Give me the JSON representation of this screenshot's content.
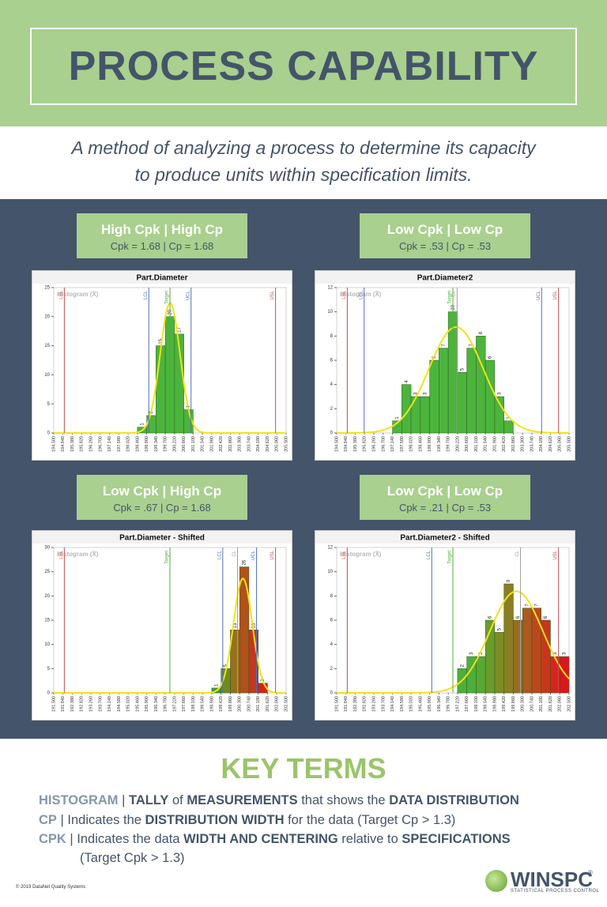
{
  "header": {
    "title": "PROCESS CAPABILITY",
    "subtitle": [
      "A method of analyzing a process to determine its capacity",
      "to produce units within specification limits."
    ]
  },
  "panels": [
    {
      "heading": "High Cpk | High Cp",
      "stats": "Cpk = 1.68  |  Cp = 1.68"
    },
    {
      "heading": "Low Cpk | Low Cp",
      "stats": "Cpk = .53  |  Cp = .53"
    },
    {
      "heading": "Low Cpk | High Cp",
      "stats": "Cpk = .67  |  Cp = 1.68"
    },
    {
      "heading": "Low Cpk | Low Cp",
      "stats": "Cpk = .21  |  Cp = .53"
    }
  ],
  "chart_data": [
    {
      "type": "histogram",
      "title": "Part.Diameter",
      "watermark": "Histogram (X̄)",
      "bins": [
        198.46,
        198.9,
        199.34,
        199.78,
        200.22,
        200.66,
        201.1
      ],
      "values": [
        1,
        3,
        15,
        20,
        17,
        4
      ],
      "color": "#4cb43c",
      "xlim": [
        194.5,
        205.5
      ],
      "ylim": [
        0,
        25
      ],
      "yticks": [
        0,
        5,
        10,
        15,
        20,
        25
      ],
      "xticks": [
        {
          "value": 194.5,
          "label": "194.500"
        },
        {
          "value": 194.94,
          "label": "194.940"
        },
        {
          "value": 195.38,
          "label": "195.380"
        },
        {
          "value": 195.82,
          "label": "195.820"
        },
        {
          "value": 196.26,
          "label": "196.260"
        },
        {
          "value": 196.7,
          "label": "196.700"
        },
        {
          "value": 197.14,
          "label": "197.140"
        },
        {
          "value": 197.58,
          "label": "197.580"
        },
        {
          "value": 198.02,
          "label": "198.020"
        },
        {
          "value": 198.46,
          "label": "198.460"
        },
        {
          "value": 198.9,
          "label": "198.900"
        },
        {
          "value": 199.34,
          "label": "199.340"
        },
        {
          "value": 199.78,
          "label": "199.780"
        },
        {
          "value": 200.22,
          "label": "200.220"
        },
        {
          "value": 200.66,
          "label": "200.660"
        },
        {
          "value": 201.1,
          "label": "201.100"
        },
        {
          "value": 201.54,
          "label": "201.540"
        },
        {
          "value": 201.98,
          "label": "201.980"
        },
        {
          "value": 202.42,
          "label": "202.420"
        },
        {
          "value": 202.86,
          "label": "202.860"
        },
        {
          "value": 203.3,
          "label": "203.300"
        },
        {
          "value": 203.74,
          "label": "203.740"
        },
        {
          "value": 204.18,
          "label": "204.180"
        },
        {
          "value": 204.62,
          "label": "204.620"
        },
        {
          "value": 205.06,
          "label": "205.060"
        },
        {
          "value": 205.5,
          "label": "205.500"
        }
      ],
      "lines": [
        {
          "label": "LSL",
          "value": 195.0,
          "color": "#c0504d"
        },
        {
          "label": "LCL",
          "value": 199.0,
          "color": "#4f6fc0"
        },
        {
          "label": "Target",
          "value": 200.0,
          "color": "#4caf3a"
        },
        {
          "label": "UCL",
          "value": 201.0,
          "color": "#4f6fc0"
        },
        {
          "label": "USL",
          "value": 205.0,
          "color": "#c0504d"
        }
      ]
    },
    {
      "type": "histogram",
      "title": "Part.Diameter2",
      "watermark": "Histogram (X̄)",
      "bins": [
        197.14,
        197.58,
        198.02,
        198.46,
        198.9,
        199.34,
        199.78,
        200.22,
        200.66,
        201.1,
        201.54,
        201.98,
        202.42,
        202.86
      ],
      "values": [
        1,
        4,
        3,
        3,
        6,
        7,
        10,
        5,
        7,
        8,
        6,
        3,
        1
      ],
      "color": "#4cb43c",
      "xlim": [
        194.5,
        205.5
      ],
      "ylim": [
        0,
        12
      ],
      "yticks": [
        0,
        2,
        4,
        6,
        8,
        10,
        12
      ],
      "xticks": [
        {
          "value": 194.5,
          "label": "194.500"
        },
        {
          "value": 194.94,
          "label": "194.940"
        },
        {
          "value": 195.38,
          "label": "195.380"
        },
        {
          "value": 195.82,
          "label": "195.820"
        },
        {
          "value": 196.26,
          "label": "196.260"
        },
        {
          "value": 196.7,
          "label": "196.700"
        },
        {
          "value": 197.14,
          "label": "197.140"
        },
        {
          "value": 197.58,
          "label": "197.580"
        },
        {
          "value": 198.02,
          "label": "198.020"
        },
        {
          "value": 198.46,
          "label": "198.460"
        },
        {
          "value": 198.9,
          "label": "198.900"
        },
        {
          "value": 199.34,
          "label": "199.340"
        },
        {
          "value": 199.78,
          "label": "199.780"
        },
        {
          "value": 200.22,
          "label": "200.220"
        },
        {
          "value": 200.66,
          "label": "200.660"
        },
        {
          "value": 201.1,
          "label": "201.100"
        },
        {
          "value": 201.54,
          "label": "201.540"
        },
        {
          "value": 201.98,
          "label": "201.980"
        },
        {
          "value": 202.42,
          "label": "202.420"
        },
        {
          "value": 202.86,
          "label": "202.860"
        },
        {
          "value": 203.3,
          "label": "203.300"
        },
        {
          "value": 203.74,
          "label": "203.740"
        },
        {
          "value": 204.18,
          "label": "204.180"
        },
        {
          "value": 204.62,
          "label": "204.620"
        },
        {
          "value": 205.06,
          "label": "205.060"
        },
        {
          "value": 205.5,
          "label": "205.500"
        }
      ],
      "lines": [
        {
          "label": "LSL",
          "value": 195.0,
          "color": "#c0504d"
        },
        {
          "label": "LCL",
          "value": 195.8,
          "color": "#4f6fc0"
        },
        {
          "label": "Target",
          "value": 200.0,
          "color": "#4caf3a"
        },
        {
          "label": "CL",
          "value": 200.2,
          "color": "#a0a0a0"
        },
        {
          "label": "UCL",
          "value": 204.2,
          "color": "#4f6fc0"
        },
        {
          "label": "USL",
          "value": 205.0,
          "color": "#c0504d"
        }
      ]
    },
    {
      "type": "histogram",
      "title": "Part.Diameter - Shifted",
      "watermark": "Histogram (X̄)",
      "bins": [
        198.98,
        199.42,
        199.86,
        200.3,
        200.74,
        201.18,
        201.62
      ],
      "values": [
        1,
        5,
        13,
        26,
        13,
        2
      ],
      "colors": [
        "#3f9e2c",
        "#6e8c22",
        "#96701e",
        "#b0521a",
        "#c4381c",
        "#d6221c"
      ],
      "xlim": [
        191.5,
        202.5
      ],
      "ylim": [
        0,
        30
      ],
      "yticks": [
        0,
        5,
        10,
        15,
        20,
        25,
        30
      ],
      "xticks": [
        {
          "value": 191.5,
          "label": "191.500"
        },
        {
          "value": 191.94,
          "label": "191.940"
        },
        {
          "value": 192.38,
          "label": "192.380"
        },
        {
          "value": 192.82,
          "label": "192.820"
        },
        {
          "value": 193.26,
          "label": "193.260"
        },
        {
          "value": 193.7,
          "label": "193.700"
        },
        {
          "value": 194.14,
          "label": "194.140"
        },
        {
          "value": 194.58,
          "label": "194.580"
        },
        {
          "value": 195.02,
          "label": "195.020"
        },
        {
          "value": 195.46,
          "label": "195.460"
        },
        {
          "value": 195.9,
          "label": "195.900"
        },
        {
          "value": 196.34,
          "label": "196.340"
        },
        {
          "value": 196.78,
          "label": "196.780"
        },
        {
          "value": 197.22,
          "label": "197.220"
        },
        {
          "value": 197.66,
          "label": "197.660"
        },
        {
          "value": 198.1,
          "label": "198.100"
        },
        {
          "value": 198.54,
          "label": "198.540"
        },
        {
          "value": 198.98,
          "label": "198.980"
        },
        {
          "value": 199.42,
          "label": "199.420"
        },
        {
          "value": 199.86,
          "label": "199.860"
        },
        {
          "value": 200.3,
          "label": "200.300"
        },
        {
          "value": 200.74,
          "label": "200.740"
        },
        {
          "value": 201.18,
          "label": "201.180"
        },
        {
          "value": 201.62,
          "label": "201.620"
        },
        {
          "value": 202.06,
          "label": "202.060"
        },
        {
          "value": 202.5,
          "label": "202.500"
        }
      ],
      "lines": [
        {
          "label": "LSL",
          "value": 192.0,
          "color": "#c0504d"
        },
        {
          "label": "Target",
          "value": 197.0,
          "color": "#4caf3a"
        },
        {
          "label": "LCL",
          "value": 199.5,
          "color": "#4f6fc0"
        },
        {
          "label": "CL",
          "value": 200.2,
          "color": "#a0a0a0"
        },
        {
          "label": "UCL",
          "value": 201.1,
          "color": "#4f6fc0"
        },
        {
          "label": "USL",
          "value": 202.0,
          "color": "#c0504d"
        }
      ]
    },
    {
      "type": "histogram",
      "title": "Part.Diameter2 - Shifted",
      "watermark": "Histogram (X̄)",
      "bins": [
        197.22,
        197.66,
        198.1,
        198.54,
        198.98,
        199.42,
        199.86,
        200.3,
        200.74,
        201.18,
        201.62,
        202.06,
        202.5
      ],
      "values": [
        2,
        3,
        3,
        6,
        5,
        9,
        6,
        7,
        7,
        6,
        3,
        3
      ],
      "colors": [
        "#4caf3a",
        "#4caf3a",
        "#58a834",
        "#6a9c2c",
        "#7a8e26",
        "#8a7e22",
        "#9a6c20",
        "#aa5a1e",
        "#ba481c",
        "#c8361c",
        "#d8241c",
        "#e0141c"
      ],
      "xlim": [
        191.5,
        202.5
      ],
      "ylim": [
        0,
        12
      ],
      "yticks": [
        0,
        2,
        4,
        6,
        8,
        10,
        12
      ],
      "xticks": [
        {
          "value": 191.5,
          "label": "191.500"
        },
        {
          "value": 191.94,
          "label": "191.940"
        },
        {
          "value": 192.38,
          "label": "192.380"
        },
        {
          "value": 192.82,
          "label": "192.820"
        },
        {
          "value": 193.26,
          "label": "193.260"
        },
        {
          "value": 193.7,
          "label": "193.700"
        },
        {
          "value": 194.14,
          "label": "194.140"
        },
        {
          "value": 194.58,
          "label": "194.580"
        },
        {
          "value": 195.02,
          "label": "195.020"
        },
        {
          "value": 195.46,
          "label": "195.460"
        },
        {
          "value": 195.9,
          "label": "195.900"
        },
        {
          "value": 196.34,
          "label": "196.340"
        },
        {
          "value": 196.78,
          "label": "196.780"
        },
        {
          "value": 197.22,
          "label": "197.220"
        },
        {
          "value": 197.66,
          "label": "197.660"
        },
        {
          "value": 198.1,
          "label": "198.100"
        },
        {
          "value": 198.54,
          "label": "198.540"
        },
        {
          "value": 198.98,
          "label": "198.980"
        },
        {
          "value": 199.42,
          "label": "199.420"
        },
        {
          "value": 199.86,
          "label": "199.860"
        },
        {
          "value": 200.3,
          "label": "200.300"
        },
        {
          "value": 200.74,
          "label": "200.740"
        },
        {
          "value": 201.18,
          "label": "201.180"
        },
        {
          "value": 201.62,
          "label": "201.620"
        },
        {
          "value": 202.06,
          "label": "202.060"
        },
        {
          "value": 202.5,
          "label": "202.500"
        }
      ],
      "lines": [
        {
          "label": "LSL",
          "value": 192.0,
          "color": "#c0504d"
        },
        {
          "label": "LCL",
          "value": 196.0,
          "color": "#4f6fc0"
        },
        {
          "label": "Target",
          "value": 197.0,
          "color": "#4caf3a"
        },
        {
          "label": "CL",
          "value": 200.2,
          "color": "#a0a0a0"
        },
        {
          "label": "USL",
          "value": 202.0,
          "color": "#c0504d"
        }
      ]
    }
  ],
  "key_terms": {
    "title": "KEY TERMS",
    "items": [
      [
        "HISTOGRAM",
        " | ",
        "TALLY",
        " of ",
        "MEASUREMENTS",
        " that shows the ",
        "DATA DISTRIBUTION"
      ],
      [
        "CP",
        " | Indicates the ",
        "DISTRIBUTION WIDTH",
        " for the data (Target Cp > 1.3)"
      ],
      [
        "CPK",
        " | Indicates the data ",
        "WIDTH AND CENTERING",
        " relative to ",
        "SPECIFICATIONS"
      ],
      [
        "(Target Cpk > 1.3)"
      ]
    ]
  },
  "footer": "© 2019 DataNet Quality Systems",
  "logo": {
    "name": "WINSPC",
    "mark": "®",
    "tagline": "STATISTICAL PROCESS CONTROL"
  }
}
